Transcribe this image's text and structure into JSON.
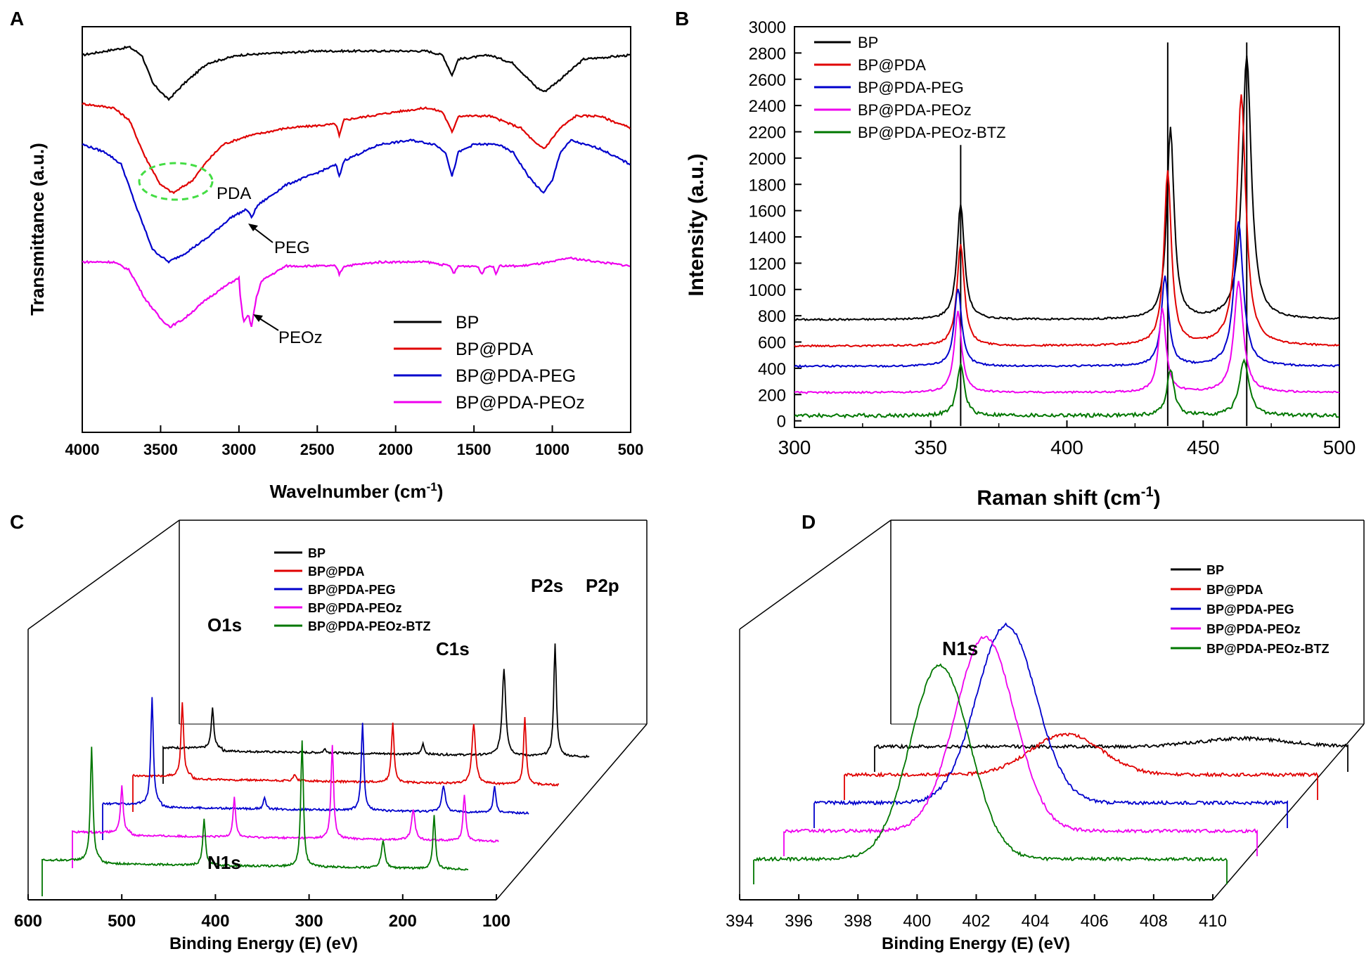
{
  "chart_data": [
    {
      "id": "A",
      "panel_label": "A",
      "type": "line",
      "title": "",
      "xlabel": "Wavelnumber (cm",
      "xlabel_sup": "-1",
      "xlabel_end": ")",
      "ylabel": "Transmittance (a.u.)",
      "xlim": [
        4000,
        500
      ],
      "x_ticks": [
        4000,
        3500,
        3000,
        2500,
        2000,
        1500,
        1000,
        500
      ],
      "y_ticks": "none",
      "legend": [
        {
          "name": "BP",
          "color": "#000000"
        },
        {
          "name": "BP@PDA",
          "color": "#e00000"
        },
        {
          "name": "BP@PDA-PEG",
          "color": "#0000cc"
        },
        {
          "name": "BP@PDA-PEOz",
          "color": "#ee00ee"
        }
      ],
      "legend_position": "bottom-right",
      "annotations": [
        "PDA",
        "PEG",
        "PEOz"
      ],
      "series": [
        {
          "name": "BP",
          "color": "#000000",
          "baseline": 0.93,
          "points": [
            [
              4000,
              0.93
            ],
            [
              3700,
              0.95
            ],
            [
              3620,
              0.93
            ],
            [
              3550,
              0.86
            ],
            [
              3450,
              0.82
            ],
            [
              3350,
              0.86
            ],
            [
              3200,
              0.91
            ],
            [
              3000,
              0.93
            ],
            [
              2500,
              0.94
            ],
            [
              2000,
              0.94
            ],
            [
              1800,
              0.94
            ],
            [
              1700,
              0.93
            ],
            [
              1640,
              0.88
            ],
            [
              1600,
              0.92
            ],
            [
              1400,
              0.93
            ],
            [
              1250,
              0.91
            ],
            [
              1100,
              0.85
            ],
            [
              1050,
              0.84
            ],
            [
              950,
              0.87
            ],
            [
              800,
              0.92
            ],
            [
              500,
              0.93
            ]
          ]
        },
        {
          "name": "BP@PDA",
          "color": "#e00000",
          "baseline": 0.81,
          "points": [
            [
              4000,
              0.81
            ],
            [
              3800,
              0.8
            ],
            [
              3700,
              0.77
            ],
            [
              3600,
              0.68
            ],
            [
              3500,
              0.61
            ],
            [
              3420,
              0.59
            ],
            [
              3300,
              0.62
            ],
            [
              3200,
              0.67
            ],
            [
              3100,
              0.71
            ],
            [
              2950,
              0.73
            ],
            [
              2700,
              0.75
            ],
            [
              2380,
              0.76
            ],
            [
              2360,
              0.73
            ],
            [
              2330,
              0.77
            ],
            [
              2000,
              0.79
            ],
            [
              1800,
              0.8
            ],
            [
              1700,
              0.79
            ],
            [
              1640,
              0.74
            ],
            [
              1600,
              0.78
            ],
            [
              1400,
              0.78
            ],
            [
              1200,
              0.75
            ],
            [
              1100,
              0.71
            ],
            [
              1050,
              0.7
            ],
            [
              950,
              0.75
            ],
            [
              850,
              0.78
            ],
            [
              700,
              0.78
            ],
            [
              500,
              0.75
            ]
          ]
        },
        {
          "name": "BP@PDA-PEG",
          "color": "#0000cc",
          "baseline": 0.72,
          "points": [
            [
              4000,
              0.71
            ],
            [
              3850,
              0.69
            ],
            [
              3750,
              0.66
            ],
            [
              3650,
              0.55
            ],
            [
              3550,
              0.45
            ],
            [
              3450,
              0.42
            ],
            [
              3350,
              0.44
            ],
            [
              3200,
              0.48
            ],
            [
              3050,
              0.53
            ],
            [
              2950,
              0.55
            ],
            [
              2920,
              0.53
            ],
            [
              2880,
              0.56
            ],
            [
              2700,
              0.61
            ],
            [
              2500,
              0.64
            ],
            [
              2380,
              0.66
            ],
            [
              2360,
              0.63
            ],
            [
              2330,
              0.67
            ],
            [
              2100,
              0.71
            ],
            [
              1900,
              0.72
            ],
            [
              1750,
              0.71
            ],
            [
              1680,
              0.69
            ],
            [
              1640,
              0.63
            ],
            [
              1600,
              0.69
            ],
            [
              1500,
              0.71
            ],
            [
              1350,
              0.71
            ],
            [
              1250,
              0.69
            ],
            [
              1150,
              0.63
            ],
            [
              1060,
              0.59
            ],
            [
              1000,
              0.62
            ],
            [
              950,
              0.69
            ],
            [
              880,
              0.72
            ],
            [
              800,
              0.71
            ],
            [
              700,
              0.7
            ],
            [
              500,
              0.66
            ]
          ]
        },
        {
          "name": "BP@PDA-PEOz",
          "color": "#ee00ee",
          "baseline": 0.42,
          "points": [
            [
              4000,
              0.42
            ],
            [
              3800,
              0.42
            ],
            [
              3700,
              0.4
            ],
            [
              3600,
              0.33
            ],
            [
              3500,
              0.28
            ],
            [
              3440,
              0.26
            ],
            [
              3350,
              0.28
            ],
            [
              3200,
              0.33
            ],
            [
              3050,
              0.37
            ],
            [
              3000,
              0.38
            ],
            [
              2990,
              0.33
            ],
            [
              2970,
              0.27
            ],
            [
              2940,
              0.29
            ],
            [
              2920,
              0.26
            ],
            [
              2890,
              0.33
            ],
            [
              2860,
              0.37
            ],
            [
              2830,
              0.38
            ],
            [
              2700,
              0.41
            ],
            [
              2500,
              0.41
            ],
            [
              2380,
              0.41
            ],
            [
              2360,
              0.39
            ],
            [
              2330,
              0.41
            ],
            [
              2100,
              0.42
            ],
            [
              1800,
              0.42
            ],
            [
              1650,
              0.41
            ],
            [
              1630,
              0.39
            ],
            [
              1600,
              0.41
            ],
            [
              1480,
              0.41
            ],
            [
              1450,
              0.39
            ],
            [
              1420,
              0.41
            ],
            [
              1380,
              0.41
            ],
            [
              1360,
              0.39
            ],
            [
              1340,
              0.41
            ],
            [
              1200,
              0.41
            ],
            [
              1000,
              0.42
            ],
            [
              900,
              0.43
            ],
            [
              700,
              0.42
            ],
            [
              500,
              0.41
            ]
          ]
        }
      ]
    },
    {
      "id": "B",
      "panel_label": "B",
      "type": "line",
      "title": "",
      "xlabel": "Raman shift (cm",
      "xlabel_sup": "-1",
      "xlabel_end": ")",
      "ylabel": "Intensity (a.u.)",
      "xlim": [
        300,
        500
      ],
      "ylim": [
        -50,
        3000
      ],
      "x_ticks": [
        300,
        350,
        400,
        450,
        500
      ],
      "y_ticks": [
        0,
        200,
        400,
        600,
        800,
        1000,
        1200,
        1400,
        1600,
        1800,
        2000,
        2200,
        2400,
        2600,
        2800,
        3000
      ],
      "vertical_lines": [
        {
          "x": 361,
          "top": 2100
        },
        {
          "x": 437,
          "top": 2880
        },
        {
          "x": 466,
          "top": 2880
        }
      ],
      "legend": [
        {
          "name": "BP",
          "color": "#000000"
        },
        {
          "name": "BP@PDA",
          "color": "#e00000"
        },
        {
          "name": "BP@PDA-PEG",
          "color": "#0000cc"
        },
        {
          "name": "BP@PDA-PEOz",
          "color": "#ee00ee"
        },
        {
          "name": "BP@PDA-PEOz-BTZ",
          "color": "#007700"
        }
      ],
      "legend_position": "top-left",
      "series": [
        {
          "name": "BP",
          "color": "#000000",
          "baseline": 770,
          "peaks": [
            [
              361,
              1650
            ],
            [
              438,
              2220
            ],
            [
              466,
              2780
            ]
          ]
        },
        {
          "name": "BP@PDA",
          "color": "#e00000",
          "baseline": 570,
          "peaks": [
            [
              361,
              1350
            ],
            [
              437,
              1900
            ],
            [
              464,
              2480
            ]
          ]
        },
        {
          "name": "BP@PDA-PEG",
          "color": "#0000cc",
          "baseline": 415,
          "peaks": [
            [
              360,
              1010
            ],
            [
              436,
              1100
            ],
            [
              463,
              1510
            ]
          ]
        },
        {
          "name": "BP@PDA-PEOz",
          "color": "#ee00ee",
          "baseline": 215,
          "peaks": [
            [
              360,
              830
            ],
            [
              435,
              850
            ],
            [
              463,
              1060
            ]
          ]
        },
        {
          "name": "BP@PDA-PEOz-BTZ",
          "color": "#007700",
          "baseline": 40,
          "peaks": [
            [
              361,
              430
            ],
            [
              438,
              390
            ],
            [
              465,
              470
            ]
          ]
        }
      ]
    },
    {
      "id": "C",
      "panel_label": "C",
      "type": "line",
      "title": "",
      "xlabel": "Binding Energy (E) (eV)",
      "xlim": [
        600,
        100
      ],
      "x_ticks": [
        600,
        500,
        400,
        300,
        200,
        100
      ],
      "legend": [
        {
          "name": "BP",
          "color": "#000000"
        },
        {
          "name": "BP@PDA",
          "color": "#e00000"
        },
        {
          "name": "BP@PDA-PEG",
          "color": "#0000cc"
        },
        {
          "name": "BP@PDA-PEOz",
          "color": "#ee00ee"
        },
        {
          "name": "BP@PDA-PEOz-BTZ",
          "color": "#007700"
        }
      ],
      "legend_position": "top-center",
      "annotations": [
        "O1s",
        "C1s",
        "N1s",
        "P2s",
        "P2p"
      ],
      "peaks": [
        {
          "x": 532,
          "label": "O1s"
        },
        {
          "x": 400,
          "label": "N1s"
        },
        {
          "x": 285,
          "label": "C1s"
        },
        {
          "x": 190,
          "label": "P2s"
        },
        {
          "x": 130,
          "label": "P2p"
        }
      ],
      "series": [
        {
          "name": "BP",
          "color": "#000000",
          "peak_heights": [
            0.3,
            0.03,
            0.08,
            0.65,
            0.85
          ]
        },
        {
          "name": "BP@PDA",
          "color": "#e00000",
          "peak_heights": [
            0.55,
            0.05,
            0.45,
            0.45,
            0.5
          ]
        },
        {
          "name": "BP@PDA-PEG",
          "color": "#0000cc",
          "peak_heights": [
            0.8,
            0.08,
            0.65,
            0.2,
            0.2
          ]
        },
        {
          "name": "BP@PDA-PEOz",
          "color": "#ee00ee",
          "peak_heights": [
            0.35,
            0.3,
            0.7,
            0.22,
            0.35
          ]
        },
        {
          "name": "BP@PDA-PEOz-BTZ",
          "color": "#007700",
          "peak_heights": [
            0.85,
            0.35,
            0.95,
            0.2,
            0.4
          ]
        }
      ]
    },
    {
      "id": "D",
      "panel_label": "D",
      "type": "line",
      "title": "",
      "xlabel": "Binding Energy (E) (eV)",
      "xlim": [
        394,
        410
      ],
      "x_ticks": [
        394,
        396,
        398,
        400,
        402,
        404,
        406,
        408,
        410
      ],
      "legend": [
        {
          "name": "BP",
          "color": "#000000"
        },
        {
          "name": "BP@PDA",
          "color": "#e00000"
        },
        {
          "name": "BP@PDA-PEG",
          "color": "#0000cc"
        },
        {
          "name": "BP@PDA-PEOz",
          "color": "#ee00ee"
        },
        {
          "name": "BP@PDA-PEOz-BTZ",
          "color": "#007700"
        }
      ],
      "legend_position": "top-right",
      "annotations": [
        "N1s"
      ],
      "series": [
        {
          "name": "BP",
          "color": "#000000",
          "peak_x": 406.5,
          "peak_height": 0.05,
          "width": 1.5
        },
        {
          "name": "BP@PDA",
          "color": "#e00000",
          "peak_x": 401.5,
          "peak_height": 0.25,
          "width": 1.2
        },
        {
          "name": "BP@PDA-PEG",
          "color": "#0000cc",
          "peak_x": 400.5,
          "peak_height": 1.1,
          "width": 1.0
        },
        {
          "name": "BP@PDA-PEOz",
          "color": "#ee00ee",
          "peak_x": 400.8,
          "peak_height": 1.2,
          "width": 1.0
        },
        {
          "name": "BP@PDA-PEOz-BTZ",
          "color": "#007700",
          "peak_x": 400.3,
          "peak_height": 1.2,
          "width": 1.0
        }
      ]
    }
  ]
}
